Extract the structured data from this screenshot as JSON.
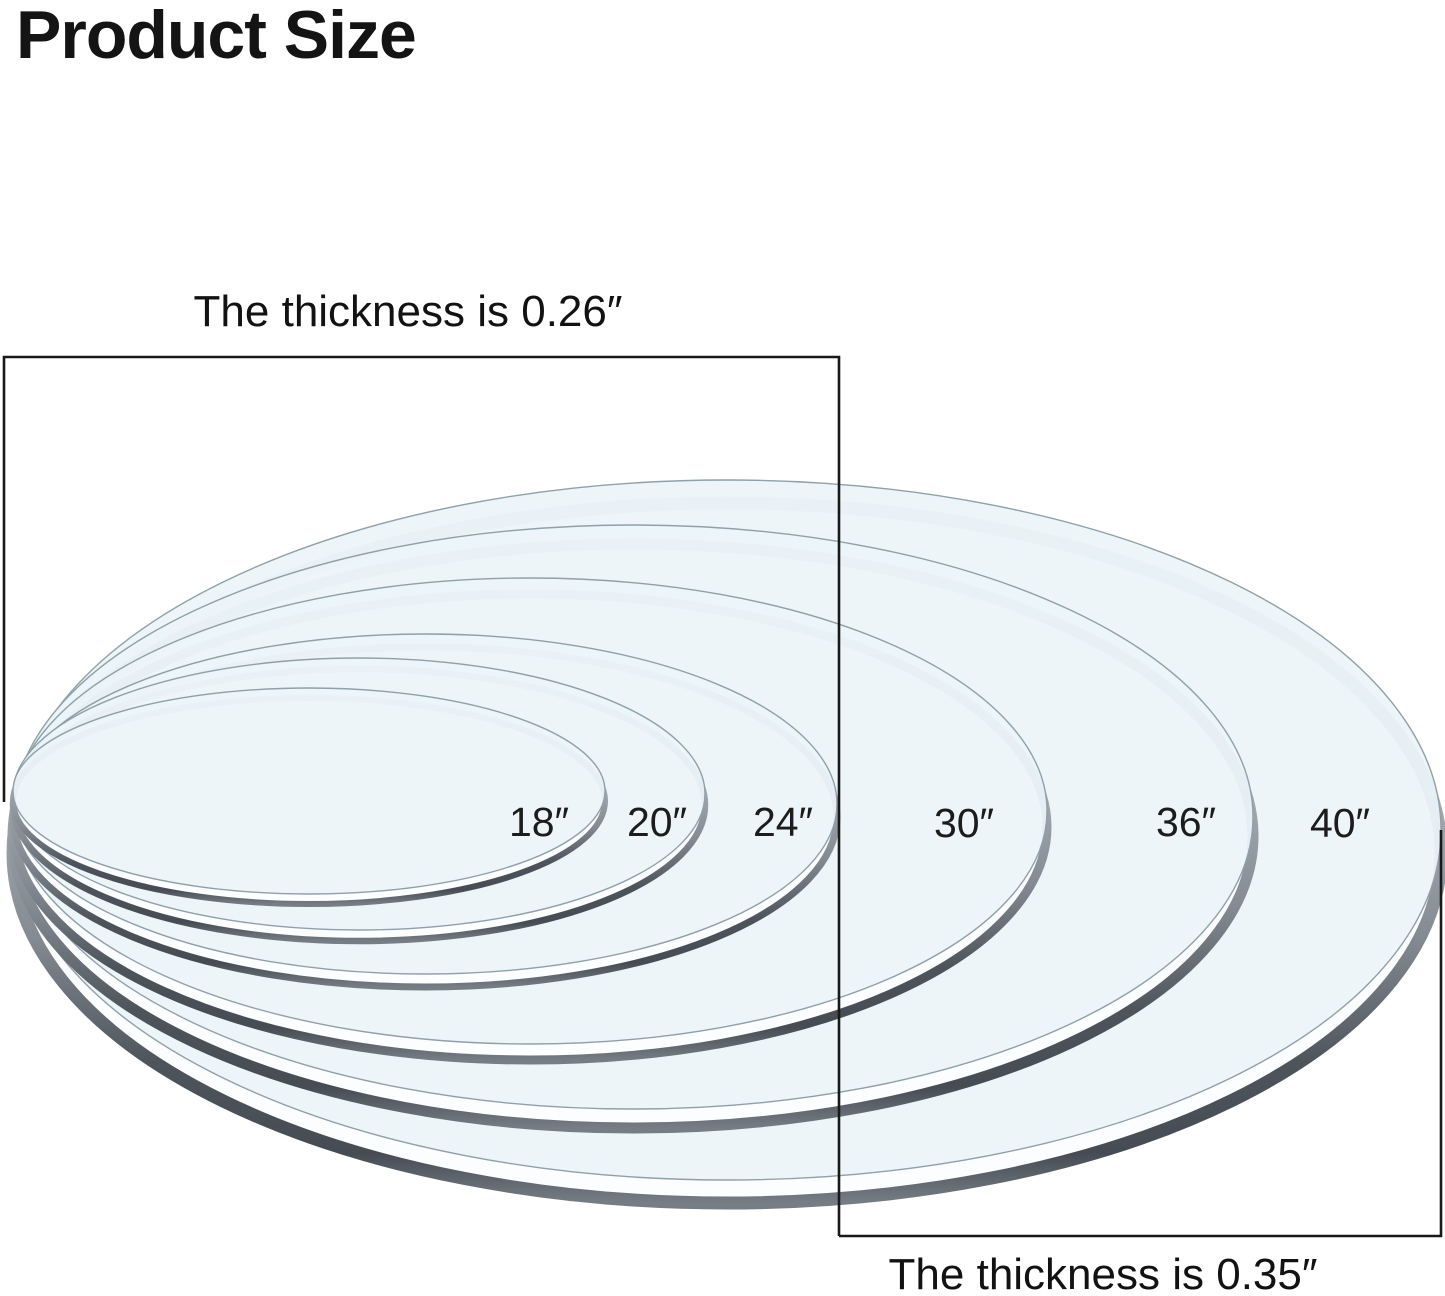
{
  "page": {
    "title": "Product Size"
  },
  "diagram": {
    "small_group": {
      "thickness_label": "The thickness is 0.26″"
    },
    "large_group": {
      "thickness_label": "The thickness is 0.35″"
    },
    "discs": [
      {
        "label": "18″",
        "diameter_in": 18,
        "thickness_in": 0.26
      },
      {
        "label": "20″",
        "diameter_in": 20,
        "thickness_in": 0.26
      },
      {
        "label": "24″",
        "diameter_in": 24,
        "thickness_in": 0.26
      },
      {
        "label": "30″",
        "diameter_in": 30,
        "thickness_in": 0.35
      },
      {
        "label": "36″",
        "diameter_in": 36,
        "thickness_in": 0.35
      },
      {
        "label": "40″",
        "diameter_in": 40,
        "thickness_in": 0.35
      }
    ]
  },
  "colors": {
    "background": "#ffffff",
    "disc_fill": "#ebf4f8",
    "disc_edge": "#8fa0a8",
    "rim_dark": "#4d545b",
    "rim_light": "#c9ced2",
    "outline": "#191919",
    "text": "#1c1c1c"
  }
}
